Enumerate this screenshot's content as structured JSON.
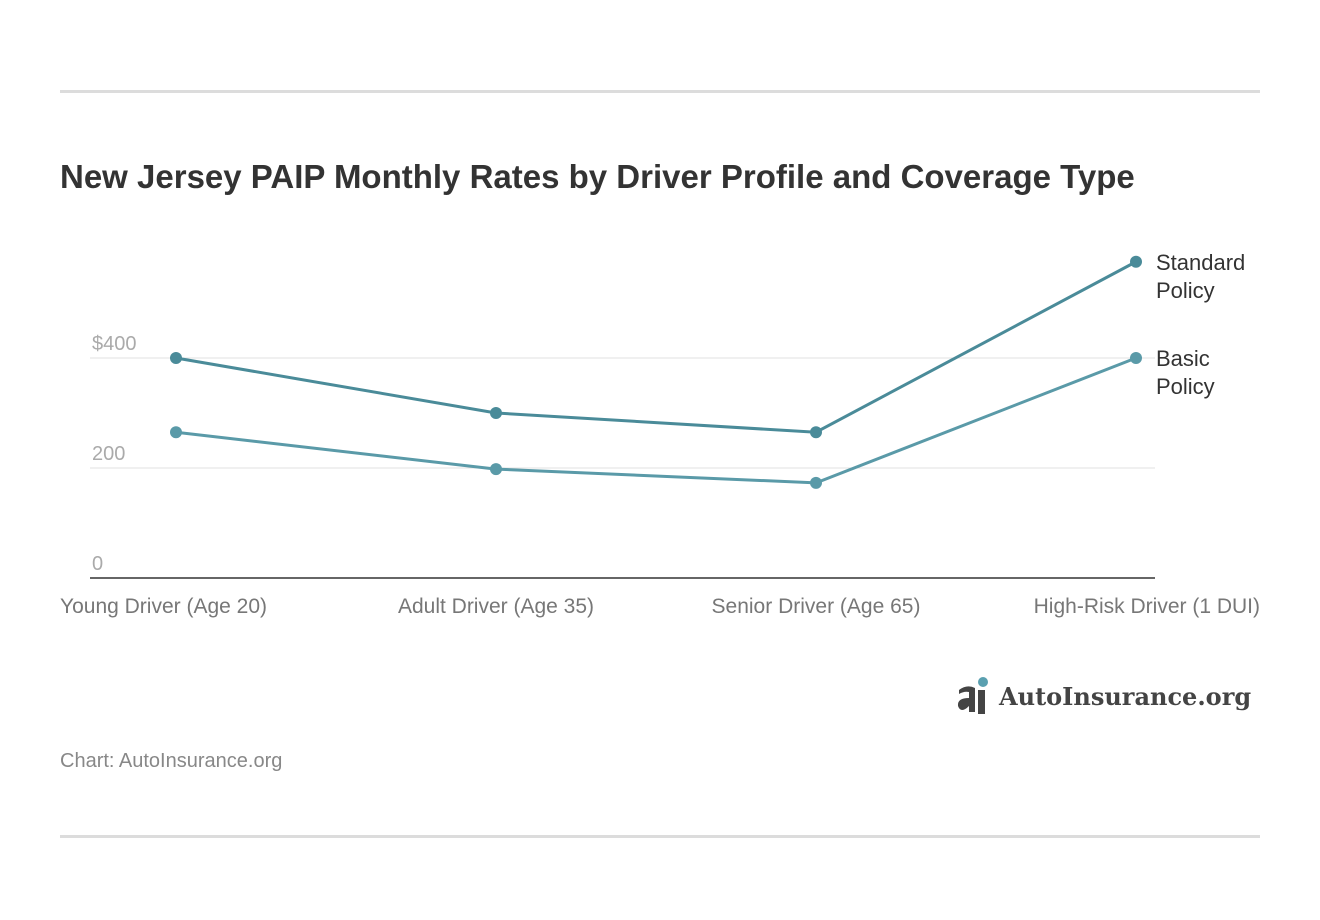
{
  "chart_data": {
    "type": "line",
    "title": "New Jersey PAIP Monthly Rates by Driver Profile and Coverage Type",
    "categories": [
      "Young Driver (Age 20)",
      "Adult Driver (Age 35)",
      "Senior Driver (Age 65)",
      "High-Risk Driver (1 DUI)"
    ],
    "series": [
      {
        "name": "Standard Policy",
        "name_lines": [
          "Standard",
          "Policy"
        ],
        "values": [
          400,
          300,
          265,
          575
        ],
        "color": "#4a8b99"
      },
      {
        "name": "Basic Policy",
        "name_lines": [
          "Basic",
          "Policy"
        ],
        "values": [
          265,
          198,
          173,
          400
        ],
        "color": "#5a9aa8"
      }
    ],
    "yticks": [
      "0",
      "200",
      "$400"
    ],
    "ytick_values": [
      0,
      200,
      400
    ],
    "ylim": [
      0,
      600
    ],
    "grid": true,
    "legend": "right, labels at line ends"
  },
  "source": "Chart: AutoInsurance.org",
  "logo": {
    "text": "AutoInsurance.org",
    "accent": "#5aa0b0"
  }
}
